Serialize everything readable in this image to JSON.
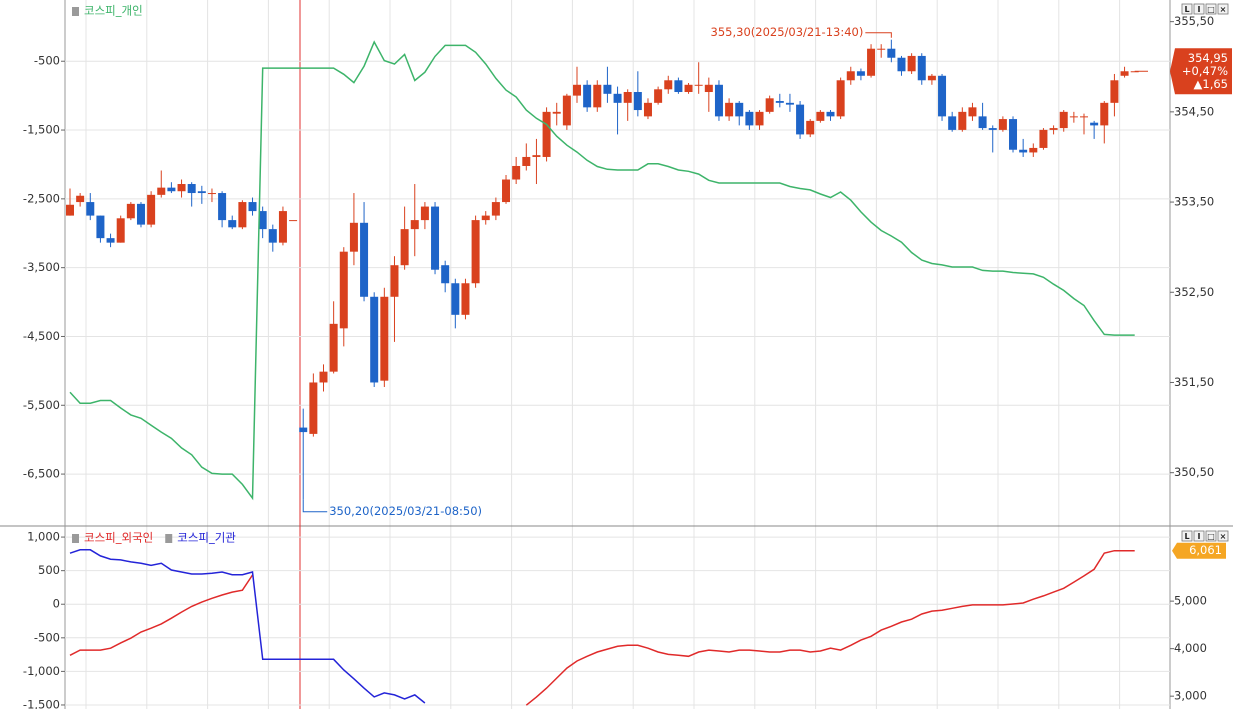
{
  "window_buttons": [
    "L",
    "I",
    "□",
    "×"
  ],
  "chart_data": [
    {
      "type": "candlestick",
      "ylim": [
        -7240,
        390
      ],
      "yticks": [
        -500,
        {
          "value": -1500,
          "label": "-1,500"
        },
        {
          "value": -2500,
          "label": "-2,500"
        },
        {
          "value": -3500,
          "label": "-3,500"
        },
        {
          "value": -4500,
          "label": "-4,500"
        },
        {
          "value": -5500,
          "label": "-5,500"
        },
        {
          "value": -6500,
          "label": "-6,500"
        }
      ],
      "y2lim": [
        349.92,
        355.74
      ],
      "y2ticks": [
        {
          "value": 355.5,
          "label": "355,50"
        },
        {
          "value": 354.5,
          "label": "354,50"
        },
        {
          "value": 353.5,
          "label": "353,50"
        },
        {
          "value": 352.5,
          "label": "352,50"
        },
        {
          "value": 351.5,
          "label": "351,50"
        },
        {
          "value": 350.5,
          "label": "350,50"
        }
      ],
      "grid": true,
      "candles": {
        "axis": "y2",
        "up_color": "#d9411e",
        "down_color": "#1e64c8",
        "open": [
          353.35,
          353.5,
          353.5,
          353.35,
          353.1,
          353.05,
          353.32,
          353.48,
          353.25,
          353.58,
          353.66,
          353.62,
          353.7,
          353.62,
          353.6,
          353.6,
          353.3,
          353.22,
          353.5,
          353.4,
          353.2,
          353.05,
          353.3,
          351.0,
          350.93,
          351.5,
          351.62,
          352.1,
          352.95,
          353.27,
          352.45,
          351.52,
          352.45,
          352.8,
          353.2,
          353.3,
          353.45,
          352.8,
          352.6,
          352.25,
          352.6,
          353.3,
          353.35,
          353.5,
          353.75,
          353.9,
          354.0,
          354.0,
          354.48,
          354.35,
          354.68,
          354.8,
          354.55,
          354.8,
          354.7,
          354.6,
          354.72,
          354.45,
          354.6,
          354.75,
          354.85,
          354.72,
          354.8,
          354.72,
          354.8,
          354.45,
          354.6,
          354.5,
          354.35,
          354.5,
          354.62,
          354.6,
          354.58,
          354.25,
          354.4,
          354.5,
          354.45,
          354.85,
          354.95,
          354.9,
          355.2,
          355.2,
          355.1,
          354.95,
          355.12,
          354.85,
          354.9,
          354.45,
          354.3,
          354.45,
          354.45,
          354.32,
          354.3,
          354.42,
          354.08,
          354.05,
          354.1,
          354.3,
          354.32,
          354.45,
          354.45,
          354.38,
          354.35,
          354.6,
          354.9,
          354.95
        ],
        "high": [
          353.65,
          353.6,
          353.6,
          353.35,
          353.15,
          353.35,
          353.5,
          353.5,
          353.62,
          353.85,
          353.72,
          353.75,
          353.72,
          353.68,
          353.65,
          353.62,
          353.35,
          353.52,
          353.55,
          353.45,
          353.25,
          353.45,
          353.3,
          351.21,
          351.6,
          351.7,
          352.4,
          353.0,
          353.6,
          353.5,
          352.5,
          352.55,
          352.9,
          353.45,
          353.7,
          353.5,
          353.5,
          352.85,
          352.65,
          352.65,
          353.35,
          353.4,
          353.55,
          353.8,
          354.0,
          354.15,
          354.2,
          354.55,
          354.6,
          354.7,
          355.0,
          354.85,
          354.85,
          355.0,
          354.78,
          354.75,
          354.95,
          354.65,
          354.78,
          354.9,
          354.88,
          354.82,
          355.05,
          354.88,
          354.85,
          354.65,
          354.62,
          354.52,
          354.52,
          354.68,
          354.7,
          354.7,
          354.62,
          354.42,
          354.52,
          354.52,
          354.88,
          355.0,
          354.98,
          355.25,
          355.25,
          355.3,
          355.12,
          355.15,
          355.15,
          354.92,
          354.92,
          354.5,
          354.55,
          354.6,
          354.6,
          354.35,
          354.45,
          354.45,
          354.2,
          354.15,
          354.32,
          354.35,
          354.52,
          354.5,
          354.48,
          354.4,
          354.62,
          354.92,
          355.0,
          354.95
        ],
        "low": [
          353.35,
          353.45,
          353.3,
          353.05,
          353.0,
          353.05,
          353.3,
          353.22,
          353.22,
          353.55,
          353.6,
          353.55,
          353.45,
          353.48,
          353.5,
          353.22,
          353.2,
          353.2,
          353.35,
          353.1,
          352.95,
          353.02,
          353.3,
          350.2,
          350.9,
          351.4,
          351.6,
          351.9,
          352.8,
          352.4,
          351.45,
          351.45,
          351.95,
          352.75,
          352.9,
          353.2,
          352.7,
          352.5,
          352.1,
          352.2,
          352.55,
          353.25,
          353.3,
          353.48,
          353.7,
          353.85,
          353.7,
          353.95,
          354.35,
          354.3,
          354.6,
          354.5,
          354.5,
          354.6,
          354.25,
          354.4,
          354.45,
          354.42,
          354.58,
          354.7,
          354.7,
          354.7,
          354.7,
          354.5,
          354.4,
          354.4,
          354.35,
          354.3,
          354.3,
          354.48,
          354.55,
          354.5,
          354.2,
          354.22,
          354.38,
          354.4,
          354.42,
          354.8,
          354.85,
          354.88,
          355.1,
          355.05,
          354.9,
          354.92,
          354.8,
          354.8,
          354.4,
          354.28,
          354.28,
          354.4,
          354.3,
          354.05,
          354.28,
          354.05,
          354.0,
          354.0,
          354.08,
          354.25,
          354.28,
          354.38,
          354.25,
          354.2,
          354.15,
          354.45,
          354.88,
          354.95
        ],
        "close": [
          353.47,
          353.57,
          353.35,
          353.1,
          353.05,
          353.32,
          353.48,
          353.25,
          353.58,
          353.66,
          353.62,
          353.7,
          353.6,
          353.6,
          353.6,
          353.3,
          353.22,
          353.5,
          353.4,
          353.2,
          353.05,
          353.4,
          353.3,
          350.95,
          351.5,
          351.62,
          352.15,
          352.95,
          353.27,
          352.45,
          351.5,
          352.45,
          352.8,
          353.2,
          353.3,
          353.45,
          352.75,
          352.6,
          352.25,
          352.6,
          353.3,
          353.35,
          353.5,
          353.75,
          353.9,
          354.0,
          354.02,
          354.5,
          354.5,
          354.68,
          354.8,
          354.55,
          354.8,
          354.7,
          354.6,
          354.72,
          354.52,
          354.6,
          354.75,
          354.85,
          354.72,
          354.8,
          354.8,
          354.8,
          354.45,
          354.6,
          354.45,
          354.35,
          354.5,
          354.65,
          354.6,
          354.58,
          354.25,
          354.4,
          354.5,
          354.45,
          354.85,
          354.95,
          354.9,
          355.2,
          355.2,
          355.1,
          354.95,
          355.12,
          354.85,
          354.9,
          354.45,
          354.3,
          354.5,
          354.55,
          354.32,
          354.3,
          354.42,
          354.08,
          354.05,
          354.1,
          354.3,
          354.32,
          354.5,
          354.45,
          354.45,
          354.35,
          354.6,
          354.85,
          354.95,
          354.95
        ]
      },
      "series": [
        {
          "name": "코스피_개인",
          "color": "#3db46a",
          "legend_text_color": "#3db46a",
          "values": [
            -5310,
            -5470,
            -5470,
            -5430,
            -5430,
            -5540,
            -5640,
            -5690,
            -5790,
            -5890,
            -5980,
            -6120,
            -6220,
            -6400,
            -6490,
            -6500,
            -6500,
            -6650,
            -6850,
            -600,
            -600,
            -600,
            -600,
            -600,
            -600,
            -600,
            -600,
            -690,
            -810,
            -570,
            -220,
            -490,
            -540,
            -400,
            -780,
            -660,
            -430,
            -270,
            -270,
            -270,
            -370,
            -540,
            -750,
            -920,
            -1020,
            -1210,
            -1330,
            -1420,
            -1590,
            -1720,
            -1820,
            -1940,
            -2030,
            -2070,
            -2080,
            -2080,
            -2080,
            -1990,
            -1990,
            -2030,
            -2080,
            -2100,
            -2140,
            -2230,
            -2270,
            -2270,
            -2270,
            -2270,
            -2270,
            -2270,
            -2270,
            -2320,
            -2350,
            -2370,
            -2430,
            -2480,
            -2400,
            -2520,
            -2690,
            -2840,
            -2960,
            -3040,
            -3130,
            -3280,
            -3390,
            -3440,
            -3460,
            -3490,
            -3490,
            -3490,
            -3540,
            -3550,
            -3550,
            -3570,
            -3580,
            -3590,
            -3640,
            -3740,
            -3830,
            -3950,
            -4050,
            -4270,
            -4470,
            -4480,
            -4480,
            -4480
          ]
        }
      ],
      "annotations": [
        {
          "text": "355,30(2025/03/21-13:40)",
          "value": 355.3,
          "color": "#d9411e",
          "side": "high"
        },
        {
          "text": "350,20(2025/03/21-08:50)",
          "value": 350.2,
          "color": "#1e64c8",
          "side": "low"
        }
      ],
      "last_price": {
        "price": 354.95,
        "price_label": "354,95",
        "change_pct": 0.47,
        "change_pct_label": "+0,47%",
        "change": 1.65,
        "change_label": "▲1,65",
        "color": "#d9411e"
      }
    },
    {
      "type": "line",
      "ylim": [
        -1560,
        1150
      ],
      "yticks": [
        {
          "value": 1000,
          "label": "1,000"
        },
        500,
        0,
        -500,
        {
          "value": -1000,
          "label": "-1,000"
        },
        {
          "value": -1500,
          "label": "-1,500"
        }
      ],
      "y2lim": [
        2730,
        6560
      ],
      "y2ticks": [
        {
          "value": 5000,
          "label": "5,000"
        },
        {
          "value": 4000,
          "label": "4,000"
        },
        {
          "value": 3000,
          "label": "3,000"
        }
      ],
      "grid": true,
      "series": [
        {
          "name": "코스피_외국인",
          "color": "#e02a2a",
          "axis": "y2",
          "values": [
            3860,
            3970,
            3970,
            3970,
            4010,
            4120,
            4220,
            4350,
            4430,
            4520,
            4640,
            4770,
            4890,
            4980,
            5060,
            5130,
            5190,
            5230,
            5550,
            null,
            null,
            null,
            null,
            null,
            null,
            null,
            null,
            null,
            null,
            null,
            null,
            null,
            null,
            null,
            null,
            null,
            null,
            null,
            null,
            null,
            null,
            null,
            null,
            null,
            null,
            2810,
            2980,
            3170,
            3380,
            3590,
            3740,
            3840,
            3930,
            3990,
            4050,
            4070,
            4070,
            4010,
            3930,
            3880,
            3860,
            3840,
            3930,
            3970,
            3950,
            3930,
            3970,
            3970,
            3950,
            3930,
            3930,
            3970,
            3970,
            3930,
            3950,
            4010,
            3970,
            4070,
            4180,
            4260,
            4390,
            4470,
            4560,
            4620,
            4730,
            4790,
            4810,
            4850,
            4890,
            4920,
            4920,
            4920,
            4920,
            4940,
            4960,
            5040,
            5110,
            5190,
            5270,
            5400,
            5530,
            5670,
            6010,
            6061,
            6061,
            6061
          ]
        },
        {
          "name": "코스피_기관",
          "color": "#2424d8",
          "values": [
            760,
            810,
            810,
            720,
            670,
            660,
            630,
            610,
            580,
            610,
            510,
            480,
            450,
            450,
            460,
            480,
            440,
            440,
            480,
            -820,
            -820,
            -820,
            -820,
            -820,
            -820,
            -820,
            -820,
            -980,
            -1110,
            -1250,
            -1380,
            -1320,
            -1350,
            -1410,
            -1350,
            -1470,
            null,
            null,
            null,
            null,
            null,
            null,
            null,
            null,
            null,
            null,
            null,
            null,
            null,
            null,
            null,
            null,
            null,
            null,
            null,
            null,
            null,
            null,
            null,
            null,
            null,
            null,
            null,
            null,
            null,
            null,
            null,
            null,
            null,
            null,
            null,
            null,
            null,
            null,
            null,
            null,
            null,
            null,
            null,
            null,
            null,
            null,
            null,
            null,
            null,
            null,
            null,
            null,
            null,
            null,
            null,
            null,
            null,
            null,
            null,
            null,
            null,
            null,
            null,
            null,
            null,
            null,
            null,
            null,
            null,
            null
          ]
        }
      ],
      "y2_marker": {
        "value": 6061,
        "label": "6,061",
        "color": "#f5a623"
      }
    }
  ]
}
